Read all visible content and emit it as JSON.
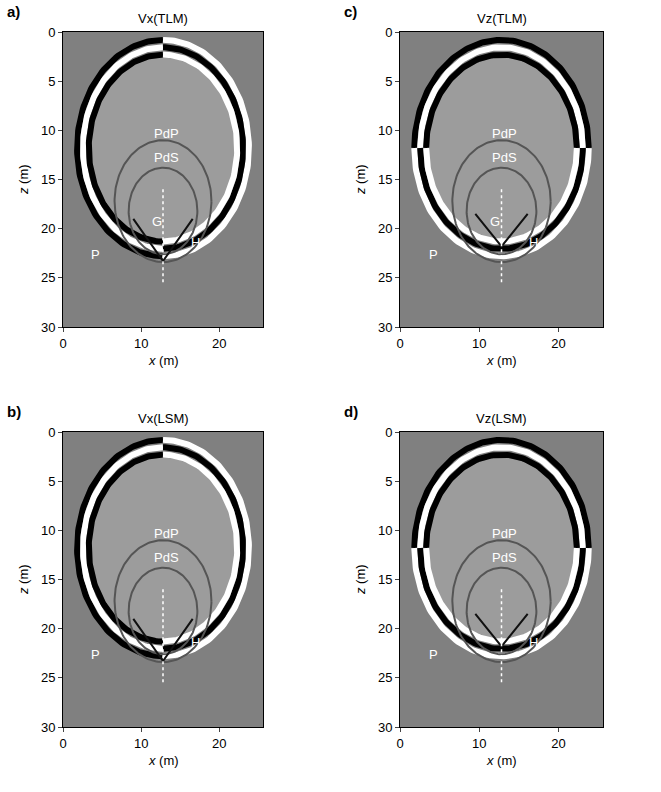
{
  "chart_data": [
    {
      "type": "snapshot",
      "panel_label": "a)",
      "title": "Vx(TLM)",
      "x_label": "x (m)",
      "y_label": "z (m)",
      "xlim": [
        0,
        25.6
      ],
      "ylim": [
        30,
        0
      ],
      "xticks": [
        0,
        10,
        20
      ],
      "yticks": [
        0,
        5,
        10,
        15,
        20,
        25,
        30
      ],
      "arcs": [
        {
          "center_x": 12.8,
          "center_z": 11.8,
          "radius": 11,
          "from": 90,
          "to": 270,
          "colors": [
            "#000000",
            "#ffffff",
            "#000000"
          ]
        },
        {
          "center_x": 12.8,
          "center_z": 11.8,
          "radius": 11,
          "from": -90,
          "to": 90,
          "colors": [
            "#ffffff",
            "#000000",
            "#ffffff"
          ]
        }
      ],
      "curves": [
        {
          "x": [
            12.8
          ],
          "z": [
            17.2
          ],
          "radius": 6.2,
          "color": "#555555"
        },
        {
          "x": [
            12.8
          ],
          "z": [
            18.2
          ],
          "radius": 4.4,
          "color": "#555555"
        },
        {
          "x": [
            9.0,
            12.8,
            16.6
          ],
          "z": [
            19.0,
            23.3,
            19.0
          ],
          "color": "#111111"
        },
        {
          "x": [
            12.8,
            12.8
          ],
          "z": [
            16.0,
            25.5
          ],
          "color": "#ffffff",
          "line_style": "dot"
        }
      ],
      "annotations": [
        {
          "text": "PdP",
          "x": 13.2,
          "z": 10.3
        },
        {
          "text": "PdS",
          "x": 13.2,
          "z": 12.8
        },
        {
          "text": "G",
          "x": 12.0,
          "z": 19.3
        },
        {
          "text": "H",
          "x": 17.0,
          "z": 21.4
        },
        {
          "text": "P",
          "x": 4.2,
          "z": 22.6
        }
      ]
    },
    {
      "type": "snapshot",
      "panel_label": "b)",
      "title": "Vx(LSM)",
      "x_label": "x (m)",
      "y_label": "z (m)",
      "xlim": [
        0,
        25.6
      ],
      "ylim": [
        30,
        0
      ],
      "xticks": [
        0,
        10,
        20
      ],
      "yticks": [
        0,
        5,
        10,
        15,
        20,
        25,
        30
      ],
      "arcs": [
        {
          "center_x": 12.8,
          "center_z": 11.8,
          "radius": 11,
          "from": 90,
          "to": 270,
          "colors": [
            "#000000",
            "#ffffff",
            "#000000"
          ]
        },
        {
          "center_x": 12.8,
          "center_z": 11.8,
          "radius": 11,
          "from": -90,
          "to": 90,
          "colors": [
            "#ffffff",
            "#000000",
            "#ffffff"
          ]
        }
      ],
      "curves": [
        {
          "x": [
            12.8
          ],
          "z": [
            17.2
          ],
          "radius": 6.2,
          "color": "#555555"
        },
        {
          "x": [
            12.8
          ],
          "z": [
            18.2
          ],
          "radius": 4.4,
          "color": "#555555"
        },
        {
          "x": [
            9.0,
            12.8,
            16.6
          ],
          "z": [
            19.0,
            23.3,
            19.0
          ],
          "color": "#111111"
        },
        {
          "x": [
            12.8,
            12.8
          ],
          "z": [
            16.0,
            25.5
          ],
          "color": "#ffffff",
          "line_style": "dot"
        }
      ],
      "annotations": [
        {
          "text": "PdP",
          "x": 13.2,
          "z": 10.3
        },
        {
          "text": "PdS",
          "x": 13.2,
          "z": 12.8
        },
        {
          "text": "H",
          "x": 17.0,
          "z": 21.4
        },
        {
          "text": "P",
          "x": 4.2,
          "z": 22.6
        }
      ]
    },
    {
      "type": "snapshot",
      "panel_label": "c)",
      "title": "Vz(TLM)",
      "x_label": "x (m)",
      "y_label": "z (m)",
      "xlim": [
        0,
        25.6
      ],
      "ylim": [
        30,
        0
      ],
      "xticks": [
        0,
        10,
        20
      ],
      "yticks": [
        0,
        5,
        10,
        15,
        20,
        25,
        30
      ],
      "arcs": [
        {
          "center_x": 12.8,
          "center_z": 11.8,
          "radius": 11,
          "from": 0,
          "to": 180,
          "colors": [
            "#000000",
            "#ffffff",
            "#000000"
          ]
        },
        {
          "center_x": 12.8,
          "center_z": 11.8,
          "radius": 11,
          "from": 180,
          "to": 360,
          "colors": [
            "#ffffff",
            "#000000",
            "#ffffff"
          ]
        }
      ],
      "curves": [
        {
          "x": [
            12.8
          ],
          "z": [
            17.2
          ],
          "radius": 6.2,
          "color": "#555555"
        },
        {
          "x": [
            12.8
          ],
          "z": [
            18.2
          ],
          "radius": 4.4,
          "color": "#555555"
        },
        {
          "x": [
            9.5,
            12.8,
            16.1
          ],
          "z": [
            18.5,
            21.8,
            18.5
          ],
          "color": "#111111"
        },
        {
          "x": [
            12.8,
            12.8
          ],
          "z": [
            16.0,
            25.5
          ],
          "color": "#ffffff",
          "line_style": "dot"
        }
      ],
      "annotations": [
        {
          "text": "PdP",
          "x": 13.2,
          "z": 10.3
        },
        {
          "text": "PdS",
          "x": 13.2,
          "z": 12.8
        },
        {
          "text": "G",
          "x": 12.0,
          "z": 19.3
        },
        {
          "text": "H",
          "x": 16.8,
          "z": 21.4
        },
        {
          "text": "P",
          "x": 4.2,
          "z": 22.6
        }
      ]
    },
    {
      "type": "snapshot",
      "panel_label": "d)",
      "title": "Vz(LSM)",
      "x_label": "x (m)",
      "y_label": "z (m)",
      "xlim": [
        0,
        25.6
      ],
      "ylim": [
        30,
        0
      ],
      "xticks": [
        0,
        10,
        20
      ],
      "yticks": [
        0,
        5,
        10,
        15,
        20,
        25,
        30
      ],
      "arcs": [
        {
          "center_x": 12.8,
          "center_z": 11.8,
          "radius": 11,
          "from": 0,
          "to": 180,
          "colors": [
            "#000000",
            "#ffffff",
            "#000000"
          ]
        },
        {
          "center_x": 12.8,
          "center_z": 11.8,
          "radius": 11,
          "from": 180,
          "to": 360,
          "colors": [
            "#ffffff",
            "#000000",
            "#ffffff"
          ]
        }
      ],
      "curves": [
        {
          "x": [
            12.8
          ],
          "z": [
            17.2
          ],
          "radius": 6.2,
          "color": "#555555"
        },
        {
          "x": [
            12.8
          ],
          "z": [
            18.2
          ],
          "radius": 4.4,
          "color": "#555555"
        },
        {
          "x": [
            9.5,
            12.8,
            16.1
          ],
          "z": [
            18.5,
            21.8,
            18.5
          ],
          "color": "#111111"
        },
        {
          "x": [
            12.8,
            12.8
          ],
          "z": [
            16.0,
            25.5
          ],
          "color": "#ffffff",
          "line_style": "dot"
        }
      ],
      "annotations": [
        {
          "text": "PdP",
          "x": 13.2,
          "z": 10.3
        },
        {
          "text": "PdS",
          "x": 13.2,
          "z": 12.8
        },
        {
          "text": "H",
          "x": 16.8,
          "z": 21.4
        },
        {
          "text": "P",
          "x": 4.2,
          "z": 22.6
        }
      ]
    }
  ]
}
